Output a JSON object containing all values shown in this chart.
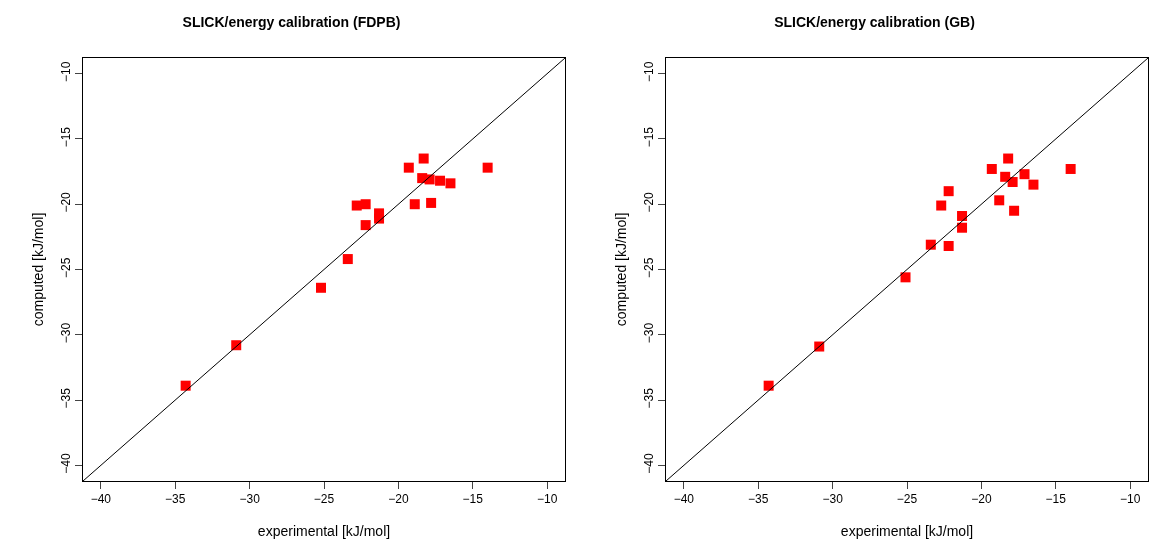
{
  "chart_data": [
    {
      "type": "scatter",
      "title": "SLICK/energy calibration (FDPB)",
      "xlabel": "experimental [kJ/mol]",
      "ylabel": "computed [kJ/mol]",
      "xlim": [
        -41.2,
        -8.8
      ],
      "ylim": [
        -41.2,
        -8.8
      ],
      "xticks": [
        -40,
        -35,
        -30,
        -25,
        -20,
        -15,
        -10
      ],
      "yticks": [
        -40,
        -35,
        -30,
        -25,
        -20,
        -15,
        -10
      ],
      "marker": "square",
      "series": [
        {
          "color": "#ff0000",
          "x": [
            -34.3,
            -30.9,
            -25.2,
            -23.4,
            -22.2,
            -22.8,
            -22.2,
            -21.3,
            -21.3,
            -19.3,
            -18.9,
            -18.3,
            -18.4,
            -17.9,
            -17.8,
            -17.2,
            -16.5,
            -14.0
          ],
          "values": [
            -33.9,
            -30.8,
            -26.4,
            -24.2,
            -21.6,
            -20.1,
            -20.0,
            -20.7,
            -21.1,
            -17.2,
            -20.0,
            -16.5,
            -18.0,
            -18.1,
            -19.9,
            -18.2,
            -18.4,
            -17.2
          ]
        },
        {
          "type": "line",
          "marker": "none",
          "color": "#000000",
          "x": [
            -41.2,
            -8.8
          ],
          "values": [
            -41.2,
            -8.8
          ]
        }
      ]
    },
    {
      "type": "scatter",
      "title": "SLICK/energy calibration (GB)",
      "xlabel": "experimental [kJ/mol]",
      "ylabel": "computed [kJ/mol]",
      "xlim": [
        -41.2,
        -8.8
      ],
      "ylim": [
        -41.2,
        -8.8
      ],
      "xticks": [
        -40,
        -35,
        -30,
        -25,
        -20,
        -15,
        -10
      ],
      "yticks": [
        -40,
        -35,
        -30,
        -25,
        -20,
        -15,
        -10
      ],
      "marker": "square",
      "series": [
        {
          "color": "#ff0000",
          "x": [
            -34.3,
            -30.9,
            -25.1,
            -23.4,
            -22.2,
            -22.7,
            -22.2,
            -21.3,
            -21.3,
            -19.3,
            -18.8,
            -18.2,
            -18.4,
            -17.9,
            -17.8,
            -17.1,
            -16.5,
            -14.0
          ],
          "values": [
            -33.9,
            -30.9,
            -25.6,
            -23.1,
            -23.2,
            -20.1,
            -19.0,
            -20.9,
            -21.8,
            -17.3,
            -19.7,
            -16.5,
            -17.9,
            -18.3,
            -20.5,
            -17.7,
            -18.5,
            -17.3
          ]
        },
        {
          "type": "line",
          "marker": "none",
          "color": "#000000",
          "x": [
            -41.2,
            -8.8
          ],
          "values": [
            -41.2,
            -8.8
          ]
        }
      ]
    }
  ]
}
